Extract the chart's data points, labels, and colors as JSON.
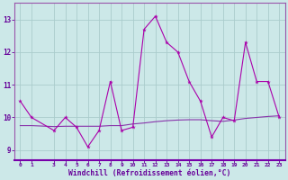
{
  "x": [
    0,
    1,
    3,
    4,
    5,
    6,
    7,
    8,
    9,
    10,
    11,
    12,
    13,
    14,
    15,
    16,
    17,
    18,
    19,
    20,
    21,
    22,
    23
  ],
  "y_line": [
    10.5,
    10.0,
    9.6,
    10.0,
    9.7,
    9.1,
    9.6,
    11.1,
    9.6,
    9.7,
    12.7,
    13.1,
    12.3,
    12.0,
    11.1,
    10.5,
    9.4,
    10.0,
    9.9,
    12.3,
    11.1,
    11.1,
    10.0
  ],
  "y_smooth": [
    9.75,
    9.75,
    9.72,
    9.73,
    9.73,
    9.73,
    9.73,
    9.75,
    9.75,
    9.8,
    9.83,
    9.87,
    9.9,
    9.92,
    9.93,
    9.93,
    9.9,
    9.88,
    9.92,
    9.97,
    10.0,
    10.03,
    10.05
  ],
  "color_line": "#aa00aa",
  "color_smooth": "#8833aa",
  "background": "#cce8e8",
  "grid_color": "#aacccc",
  "axis_bg": "#7700aa",
  "xlabel": "Windchill (Refroidissement éolien,°C)",
  "ylim": [
    8.7,
    13.5
  ],
  "xlim": [
    -0.5,
    23.5
  ],
  "yticks": [
    9,
    10,
    11,
    12,
    13
  ],
  "xticks": [
    0,
    1,
    3,
    4,
    5,
    6,
    7,
    8,
    9,
    10,
    11,
    12,
    13,
    14,
    15,
    16,
    17,
    18,
    19,
    20,
    21,
    22,
    23
  ],
  "tick_color": "#660099",
  "xlabel_color": "#660099",
  "spine_color": "#888899"
}
